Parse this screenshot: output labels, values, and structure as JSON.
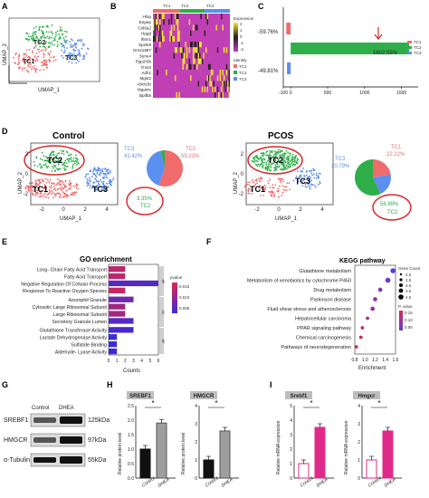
{
  "panels": {
    "a": {
      "letter": "A",
      "clusters": [
        "TC2",
        "TC1",
        "TC3"
      ],
      "xlabel": "UMAP_1",
      "ylabel": "UMAP_2"
    },
    "b": {
      "letter": "B",
      "column_labels": [
        "TC1",
        "TC2",
        "TC3"
      ],
      "genes": [
        "Hhip",
        "Enpep",
        "Col6a2",
        "Hpgd",
        "Ifitm1",
        "Spink8",
        "Gm21887",
        "Syne4",
        "Ppp2r5b",
        "Tnni3",
        "Adh1",
        "Mgst2",
        "Abcb1b",
        "Mgat4c",
        "Bpifb5"
      ],
      "legend_title": "Expression",
      "legend_ticks": [
        "2",
        "1",
        "0",
        "-1",
        "-2"
      ],
      "identity_title": "Identity",
      "identity_items": [
        "TC1",
        "TC2",
        "TC3"
      ]
    },
    "c": {
      "letter": "C",
      "bar_labels": [
        "-59.76%",
        "1602.55%",
        "-49.81%"
      ],
      "ticks": [
        "-100",
        "0",
        "500",
        "1000",
        "1500"
      ],
      "legend": [
        "TC1",
        "TC2",
        "TC3"
      ]
    },
    "d": {
      "letter": "D",
      "control_title": "Control",
      "pcos_title": "PCOS",
      "ctrl": {
        "tc1": "TC1",
        "tc1_pct": "55.23%",
        "tc2": "TC2",
        "tc2_pct": "3.35%",
        "tc3": "TC3",
        "tc3_pct": "41.42%"
      },
      "pcos": {
        "tc1": "TC1",
        "tc1_pct": "22.22%",
        "tc2": "TC2",
        "tc2_pct": "56.99%",
        "tc3": "TC3",
        "tc3_pct": "20.79%"
      },
      "xlabel": "UMAP_1",
      "ylabel": "UMAP_2",
      "xticks": [
        "-2",
        "0",
        "2",
        "4"
      ],
      "yticks": [
        "2",
        "0",
        "-2"
      ]
    },
    "e": {
      "letter": "E",
      "title": "GO enrichment",
      "xlabel": "Counts",
      "xticks": [
        "0",
        "1",
        "2",
        "3",
        "4",
        "5",
        "6"
      ],
      "legend_title": "pvalue",
      "legend_ticks": [
        "0.015",
        "0.010",
        "0.005"
      ],
      "groups": [
        "BP",
        "CC",
        "MF"
      ]
    },
    "f": {
      "letter": "F",
      "title": "KEGG pathway",
      "xlabel": "Enrichment",
      "xticks": [
        "0.8",
        "1.0",
        "1.2",
        "1.4",
        "1.6"
      ],
      "size_title": "Gene Count",
      "size_ticks": [
        "2.0",
        "2.5",
        "3.0",
        "3.5",
        "4.0"
      ],
      "color_title": "P. value",
      "color_ticks": [
        "0.15",
        "0.10",
        "0.05"
      ]
    },
    "g": {
      "letter": "G",
      "lanes": [
        "Control",
        "DHEA"
      ],
      "rows": [
        {
          "name": "SREBF1",
          "kda": "125kDa"
        },
        {
          "name": "HMGCR",
          "kda": "97kDa"
        },
        {
          "name": "α-Tubulin",
          "kda": "55kDa"
        }
      ]
    },
    "h": {
      "letter": "H",
      "ylabel": "Relative protein level",
      "star": "*",
      "groups": [
        "Control",
        "DHEA"
      ]
    },
    "i": {
      "letter": "I",
      "ylabel": "Relative mRNA expression",
      "star": "*",
      "groups": [
        "Control",
        "DHEA"
      ]
    }
  },
  "chart_data": [
    {
      "type": "bar",
      "panel": "C",
      "orientation": "horizontal",
      "categories": [
        "TC1",
        "TC2",
        "TC3"
      ],
      "values": [
        -59.76,
        1602.55,
        -49.81
      ],
      "xlim": [
        -100,
        1700
      ]
    },
    {
      "type": "bar",
      "panel": "E",
      "title": "GO enrichment",
      "xlabel": "Counts",
      "xlim": [
        0,
        6
      ],
      "categories": [
        "Long- Chain Fatty Acid Transport",
        "Fatty Acid Transport",
        "Negative Regulation Of Cellular Process",
        "Response To Reactive Oxygen Species",
        "Azurophil Granule",
        "Cytosolic Large Ribosomal Subunit",
        "Large Ribosomal Subunit",
        "Secretory Granule Lumen",
        "Glutathione Transferase Activity",
        "Lactate Dehydrogenase Activity",
        "Sulfatide Binding",
        "Aldehyde- Lyase Activity"
      ],
      "values": [
        2,
        2,
        6,
        2,
        3,
        2,
        2,
        3,
        3,
        1,
        1,
        1
      ],
      "pvalue": [
        0.012,
        0.012,
        0.004,
        0.013,
        0.006,
        0.01,
        0.01,
        0.004,
        0.003,
        0.002,
        0.002,
        0.002
      ]
    },
    {
      "type": "scatter",
      "panel": "F",
      "title": "KEGG pathway",
      "xlabel": "Enrichment",
      "xlim": [
        0.8,
        1.6
      ],
      "categories": [
        "Glutathione metabolism",
        "Metabolism of xenobiotics by cytochrome P450",
        "Drug metabolism",
        "Parkinson disease",
        "Fluid shear stress and atherosclerosis",
        "Hepatocellular carcinoma",
        "PPAR signaling pathway",
        "Chemical carcinogenesis",
        "Pathways of neurodegeneration"
      ],
      "x": [
        1.55,
        1.45,
        1.3,
        1.2,
        1.15,
        1.05,
        0.95,
        0.92,
        0.83
      ],
      "gene_count": [
        4,
        4,
        3,
        3,
        3,
        2,
        2,
        2,
        2
      ]
    },
    {
      "type": "bar",
      "panel": "H",
      "series": [
        {
          "name": "SREBF1",
          "categories": [
            "Control",
            "DHEA"
          ],
          "values": [
            1.0,
            1.9
          ],
          "ylim": [
            0,
            2.5
          ],
          "yticks": [
            "0.0",
            "0.5",
            "1.0",
            "1.5",
            "2.0",
            "2.5"
          ]
        },
        {
          "name": "HMGCR",
          "categories": [
            "Control",
            "DHEA"
          ],
          "values": [
            1.0,
            2.6
          ],
          "ylim": [
            0,
            4
          ],
          "yticks": [
            "0",
            "1",
            "2",
            "3",
            "4"
          ]
        }
      ]
    },
    {
      "type": "bar",
      "panel": "I",
      "series": [
        {
          "name": "Srebf1",
          "categories": [
            "Control",
            "DHEA"
          ],
          "values": [
            1.0,
            3.5
          ],
          "ylim": [
            0,
            5
          ],
          "yticks": [
            "0",
            "1",
            "2",
            "3",
            "4",
            "5"
          ]
        },
        {
          "name": "Hmgcr",
          "categories": [
            "Control",
            "DHEA"
          ],
          "values": [
            1.0,
            2.6
          ],
          "ylim": [
            0,
            4
          ],
          "yticks": [
            "0",
            "1",
            "2",
            "3",
            "4"
          ]
        }
      ]
    },
    {
      "type": "pie",
      "panel": "D-Control",
      "categories": [
        "TC1",
        "TC2",
        "TC3"
      ],
      "values": [
        55.23,
        3.35,
        41.42
      ]
    },
    {
      "type": "pie",
      "panel": "D-PCOS",
      "categories": [
        "TC1",
        "TC2",
        "TC3"
      ],
      "values": [
        22.22,
        56.99,
        20.79
      ]
    }
  ],
  "colors": {
    "tc1": "#f06b6b",
    "tc2": "#2fae4a",
    "tc3": "#5b8ff0",
    "circle": "#d62a2a",
    "hmgcr": "#9e9e9e",
    "pink": "#e02a8a"
  }
}
